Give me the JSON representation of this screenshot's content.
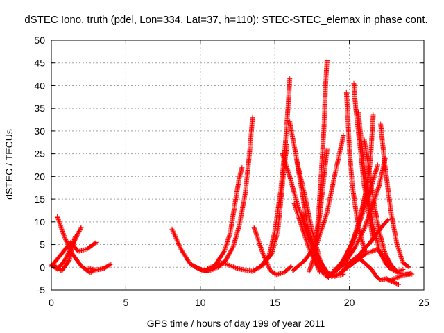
{
  "chart_data": {
    "type": "scatter",
    "title": "dSTEC Iono. truth (pdel, Lon=334, Lat=37, h=110): STEC-STEC_elemax in phase cont.",
    "xlabel": "GPS time / hours of day 199 of year 2011",
    "ylabel": "dSTEC  / TECUs",
    "xlim": [
      0,
      25
    ],
    "ylim": [
      -5,
      50
    ],
    "xticks": [
      0,
      5,
      10,
      15,
      20,
      25
    ],
    "yticks": [
      -5,
      0,
      5,
      10,
      15,
      20,
      25,
      30,
      35,
      40,
      45,
      50
    ],
    "grid": true,
    "marker": "+",
    "color": "#ff0000",
    "arcs": [
      {
        "x": [
          0.0,
          0.4,
          0.9,
          1.4,
          2.0
        ],
        "y": [
          0.5,
          -0.4,
          1.5,
          4.8,
          8.8
        ]
      },
      {
        "x": [
          0.4,
          0.9,
          1.4,
          2.0,
          2.6,
          3.0
        ],
        "y": [
          11.2,
          6.5,
          3.0,
          0.3,
          -1.2,
          -0.5
        ]
      },
      {
        "x": [
          0.0,
          0.7,
          1.3,
          1.8,
          2.4,
          3.0
        ],
        "y": [
          0.2,
          3.0,
          5.5,
          3.5,
          4.0,
          5.5
        ]
      },
      {
        "x": [
          0.1,
          0.7,
          1.2,
          1.6
        ],
        "y": [
          0.6,
          -0.8,
          1.5,
          6.8
        ]
      },
      {
        "x": [
          2.4,
          3.0,
          3.5,
          4.0
        ],
        "y": [
          -0.2,
          -0.6,
          -0.3,
          0.7
        ]
      },
      {
        "x": [
          8.1,
          8.7,
          9.3,
          10.0,
          10.5,
          11.0,
          11.6,
          12.0,
          12.3,
          12.6,
          12.8
        ],
        "y": [
          8.4,
          4.0,
          0.8,
          -0.5,
          -0.8,
          0.5,
          3.5,
          7.5,
          13.5,
          19.5,
          22.0
        ]
      },
      {
        "x": [
          9.5,
          10.1,
          10.7,
          11.2,
          11.7,
          12.2,
          12.6,
          13.0,
          13.3,
          13.5
        ],
        "y": [
          0.3,
          -0.6,
          -0.7,
          0.0,
          1.5,
          4.5,
          9.0,
          16.0,
          25.0,
          33.0
        ]
      },
      {
        "x": [
          10.5,
          11.5,
          12.5,
          13.5,
          14.2,
          14.8,
          15.2,
          15.5,
          15.8
        ],
        "y": [
          -0.2,
          1.0,
          -0.3,
          -0.9,
          0.5,
          3.0,
          8.0,
          18.0,
          27.0
        ]
      },
      {
        "x": [
          13.6,
          14.2,
          14.7,
          15.1,
          15.6,
          16.1
        ],
        "y": [
          8.8,
          3.0,
          -0.8,
          -1.6,
          -1.2,
          0.2
        ]
      },
      {
        "x": [
          14.0,
          14.6,
          15.0,
          15.4,
          15.7,
          15.9,
          16.0
        ],
        "y": [
          0.0,
          2.5,
          8.0,
          17.0,
          27.0,
          36.0,
          41.5
        ]
      },
      {
        "x": [
          15.5,
          16.0,
          16.5,
          17.0,
          17.5,
          18.0,
          18.4,
          18.8,
          19.3,
          20.0
        ],
        "y": [
          25.0,
          20.0,
          14.0,
          9.0,
          4.5,
          1.0,
          -1.0,
          -2.0,
          -1.5,
          0.5
        ]
      },
      {
        "x": [
          16.0,
          16.4,
          16.8,
          17.2,
          17.6,
          18.0
        ],
        "y": [
          32.0,
          25.0,
          17.0,
          9.0,
          3.0,
          -1.0
        ]
      },
      {
        "x": [
          16.5,
          17.0,
          17.5,
          18.0,
          18.4,
          18.6
        ],
        "y": [
          23.0,
          16.0,
          8.0,
          2.0,
          -1.5,
          -2.2
        ]
      },
      {
        "x": [
          16.3,
          16.8,
          17.3,
          17.8,
          18.3
        ],
        "y": [
          14.0,
          9.0,
          4.0,
          0.5,
          -1.5
        ]
      },
      {
        "x": [
          16.8,
          17.4,
          18.0,
          18.5,
          19.0,
          19.6
        ],
        "y": [
          12.0,
          6.0,
          1.5,
          -1.0,
          -2.0,
          -1.5
        ]
      },
      {
        "x": [
          17.3,
          17.6,
          17.9,
          18.2,
          18.5
        ],
        "y": [
          -1.0,
          2.0,
          8.0,
          17.0,
          26.0
        ]
      },
      {
        "x": [
          17.6,
          17.9,
          18.1,
          18.3,
          18.4,
          18.5
        ],
        "y": [
          3.0,
          10.0,
          20.0,
          31.0,
          40.0,
          45.5
        ]
      },
      {
        "x": [
          16.2,
          17.0,
          17.8,
          18.5,
          19.0,
          19.6
        ],
        "y": [
          -0.8,
          1.5,
          5.0,
          12.0,
          20.0,
          29.0
        ]
      },
      {
        "x": [
          18.5,
          19.2,
          19.8,
          20.4,
          21.0,
          21.5,
          22.0,
          22.4
        ],
        "y": [
          -2.0,
          -0.5,
          1.5,
          4.5,
          8.5,
          13.0,
          18.0,
          24.0
        ]
      },
      {
        "x": [
          18.8,
          19.5,
          20.2,
          20.8,
          21.4,
          21.9
        ],
        "y": [
          -1.5,
          1.0,
          5.5,
          11.0,
          17.0,
          22.5
        ]
      },
      {
        "x": [
          19.2,
          19.7,
          20.2,
          20.7,
          21.1,
          21.4,
          21.6
        ],
        "y": [
          0.0,
          2.0,
          5.5,
          10.5,
          16.5,
          23.0,
          33.5
        ]
      },
      {
        "x": [
          19.8,
          19.9,
          20.0,
          20.2,
          20.5,
          20.8,
          21.1
        ],
        "y": [
          38.5,
          33.0,
          26.0,
          18.0,
          11.0,
          6.5,
          3.0
        ]
      },
      {
        "x": [
          20.3,
          20.4,
          20.6,
          20.8,
          21.0,
          21.3,
          21.6
        ],
        "y": [
          40.5,
          36.0,
          30.0,
          24.0,
          18.0,
          12.0,
          6.0
        ]
      },
      {
        "x": [
          20.6,
          20.8,
          21.0,
          21.3,
          21.6,
          22.0,
          22.4,
          22.8
        ],
        "y": [
          34.0,
          28.0,
          22.0,
          15.0,
          9.0,
          4.0,
          1.0,
          -0.5
        ]
      },
      {
        "x": [
          21.0,
          21.3,
          21.6,
          22.0,
          22.4,
          22.8,
          23.2,
          23.6
        ],
        "y": [
          28.0,
          22.0,
          15.0,
          8.0,
          3.0,
          0.5,
          -1.0,
          -0.5
        ]
      },
      {
        "x": [
          18.5,
          19.2,
          19.8,
          20.4,
          20.8,
          21.2
        ],
        "y": [
          -2.2,
          -0.5,
          2.5,
          7.0,
          12.0,
          17.5
        ]
      },
      {
        "x": [
          19.0,
          19.8,
          20.6,
          21.4,
          22.2,
          22.6
        ],
        "y": [
          -0.5,
          0.5,
          2.5,
          5.5,
          9.0,
          10.5
        ]
      },
      {
        "x": [
          19.5,
          20.3,
          21.1,
          21.9,
          22.5,
          23.0,
          23.6,
          24.2
        ],
        "y": [
          -1.0,
          1.0,
          3.0,
          4.0,
          1.0,
          -0.8,
          -1.5,
          -1.5
        ]
      },
      {
        "x": [
          20.5,
          21.0,
          21.5,
          21.8,
          22.1,
          22.5,
          22.9,
          23.3
        ],
        "y": [
          2.5,
          1.0,
          -0.5,
          -2.0,
          -2.8,
          -2.5,
          -3.2,
          -3.8
        ]
      },
      {
        "x": [
          22.1,
          22.4,
          22.8,
          23.2,
          23.6,
          24.0
        ],
        "y": [
          31.5,
          22.0,
          12.0,
          5.0,
          1.0,
          0.0
        ]
      },
      {
        "x": [
          22.6,
          23.0,
          23.4,
          23.8,
          24.1
        ],
        "y": [
          -3.0,
          -2.5,
          -2.0,
          -1.6,
          -1.4
        ]
      }
    ]
  }
}
